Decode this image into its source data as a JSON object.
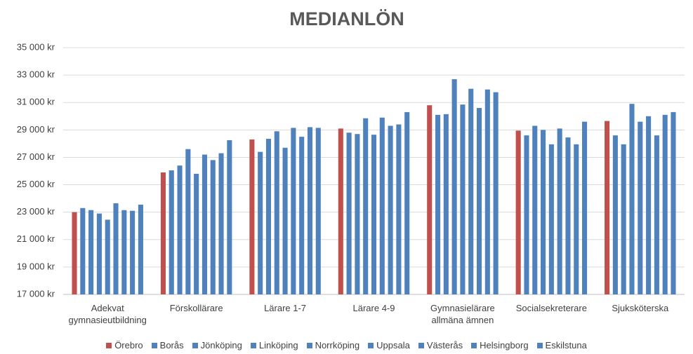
{
  "chart_data": {
    "type": "bar",
    "title": "MEDIANLÖN",
    "categories": [
      "Adekvat gymnasieutbildning",
      "Förskollärare",
      "Lärare 1-7",
      "Lärare 4-9",
      "Gymnasielärare allmäna ämnen",
      "Socialsekreterare",
      "Sjuksköterska"
    ],
    "series": [
      {
        "name": "Örebro",
        "color": "#c0504d",
        "values": [
          23000,
          25900,
          28300,
          29100,
          30800,
          28950,
          29650
        ]
      },
      {
        "name": "Borås",
        "color": "#4f81bd",
        "values": [
          23300,
          26050,
          27400,
          28800,
          30100,
          28600,
          28600
        ]
      },
      {
        "name": "Jönköping",
        "color": "#4f81bd",
        "values": [
          23150,
          26400,
          28350,
          28700,
          30150,
          29300,
          27950
        ]
      },
      {
        "name": "Linköping",
        "color": "#4f81bd",
        "values": [
          22900,
          27600,
          28900,
          29850,
          32700,
          29000,
          30900
        ]
      },
      {
        "name": "Norrköping",
        "color": "#4f81bd",
        "values": [
          22450,
          25800,
          27700,
          28650,
          30850,
          27950,
          29600
        ]
      },
      {
        "name": "Uppsala",
        "color": "#4f81bd",
        "values": [
          23650,
          27200,
          29150,
          29900,
          32000,
          29100,
          30000
        ]
      },
      {
        "name": "Västerås",
        "color": "#4f81bd",
        "values": [
          23150,
          26800,
          28500,
          29300,
          30600,
          28450,
          28600
        ]
      },
      {
        "name": "Helsingborg",
        "color": "#4f81bd",
        "values": [
          23100,
          27300,
          29200,
          29400,
          31950,
          27950,
          30100
        ]
      },
      {
        "name": "Eskilstuna",
        "color": "#4f81bd",
        "values": [
          23550,
          28250,
          29150,
          30300,
          31750,
          29600,
          30300
        ]
      }
    ],
    "ylim": [
      17000,
      35000
    ],
    "yticks": [
      {
        "value": 17000,
        "label": "17 000 kr"
      },
      {
        "value": 19000,
        "label": "19 000 kr"
      },
      {
        "value": 21000,
        "label": "21 000 kr"
      },
      {
        "value": 23000,
        "label": "23 000 kr"
      },
      {
        "value": 25000,
        "label": "25 000 kr"
      },
      {
        "value": 27000,
        "label": "27 000 kr"
      },
      {
        "value": 29000,
        "label": "29 000 kr"
      },
      {
        "value": 31000,
        "label": "31 000 kr"
      },
      {
        "value": 33000,
        "label": "33 000 kr"
      },
      {
        "value": 35000,
        "label": "35 000 kr"
      }
    ],
    "grid": true
  }
}
